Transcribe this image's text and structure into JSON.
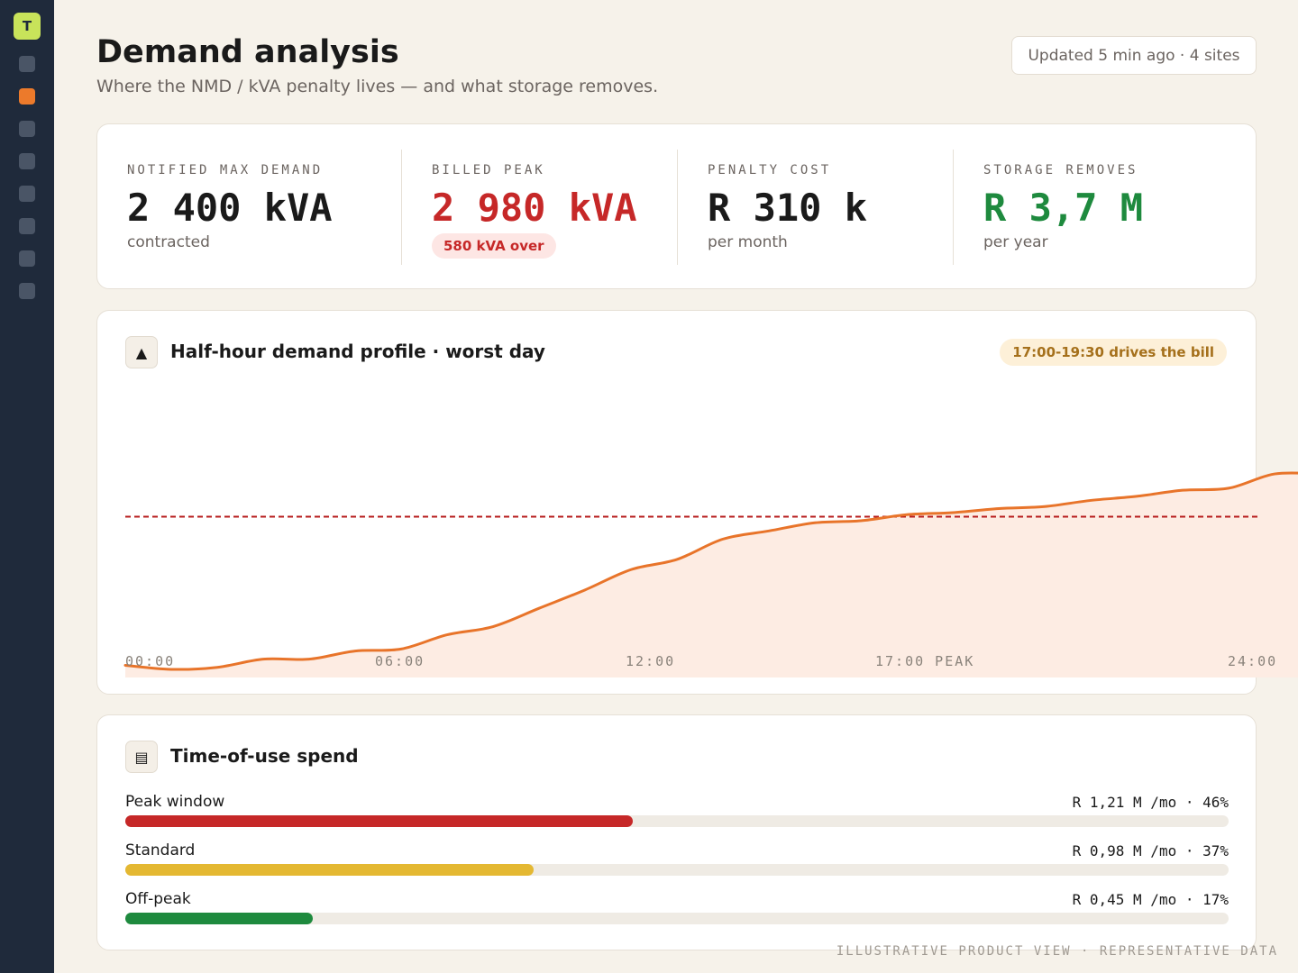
{
  "sidebar": {
    "logo": "T",
    "items": [
      {
        "name": "nav-1",
        "active": false
      },
      {
        "name": "nav-2",
        "active": true
      },
      {
        "name": "nav-3",
        "active": false
      },
      {
        "name": "nav-4",
        "active": false
      },
      {
        "name": "nav-5",
        "active": false
      },
      {
        "name": "nav-6",
        "active": false
      },
      {
        "name": "nav-7",
        "active": false
      },
      {
        "name": "nav-8",
        "active": false
      }
    ]
  },
  "header": {
    "title": "Demand analysis",
    "subtitle": "Where the NMD / kVA penalty lives — and what storage removes.",
    "updated": "Updated 5 min ago · 4 sites"
  },
  "kpis": [
    {
      "label": "NOTIFIED MAX DEMAND",
      "value": "2 400 kVA",
      "note": "contracted"
    },
    {
      "label": "BILLED PEAK",
      "value": "2 980 kVA",
      "badge": "580 kVA over"
    },
    {
      "label": "PENALTY COST",
      "value": "R 310 k",
      "note": "per month"
    },
    {
      "label": "STORAGE REMOVES",
      "value": "R 3,7 M",
      "note": "per year"
    }
  ],
  "demand_chart": {
    "icon": "triangle-icon",
    "title": "Half-hour demand profile · worst day",
    "badge": "17:00-19:30 drives the bill",
    "x_tick_labels": [
      "00:00",
      "06:00",
      "12:00",
      "17:00 PEAK",
      "24:00"
    ]
  },
  "chart_data": {
    "type": "area",
    "x": [
      "00:00",
      "01:00",
      "02:00",
      "03:00",
      "04:00",
      "05:00",
      "06:00",
      "07:00",
      "08:00",
      "09:00",
      "10:00",
      "11:00",
      "12:00",
      "13:00",
      "14:00",
      "15:00",
      "16:00",
      "17:00",
      "18:00",
      "19:00",
      "20:00",
      "21:00",
      "22:00",
      "23:00",
      "24:00",
      "25:00",
      "26:00"
    ],
    "values": [
      0.06,
      0.04,
      0.05,
      0.09,
      0.09,
      0.13,
      0.14,
      0.21,
      0.25,
      0.34,
      0.43,
      0.53,
      0.58,
      0.68,
      0.72,
      0.76,
      0.77,
      0.8,
      0.81,
      0.83,
      0.84,
      0.87,
      0.89,
      0.92,
      0.93,
      1.0,
      1.0
    ],
    "nmd_line": 0.79,
    "ylim": [
      0,
      1.35
    ],
    "colors": {
      "line": "#e8742a",
      "fill": "#fdece3",
      "nmd": "#b71c1c"
    }
  },
  "tou": {
    "icon": "list-icon",
    "title": "Time-of-use spend",
    "rows": [
      {
        "label": "Peak window",
        "value": "R 1,21 M /mo · 46%",
        "fraction": 0.46,
        "color": "#c62828"
      },
      {
        "label": "Standard",
        "value": "R 0,98 M /mo · 37%",
        "fraction": 0.37,
        "color": "#e4b832"
      },
      {
        "label": "Off-peak",
        "value": "R 0,45 M /mo · 17%",
        "fraction": 0.17,
        "color": "#1e8a3e"
      }
    ]
  },
  "footer": {
    "note": "ILLUSTRATIVE PRODUCT VIEW · REPRESENTATIVE DATA"
  }
}
